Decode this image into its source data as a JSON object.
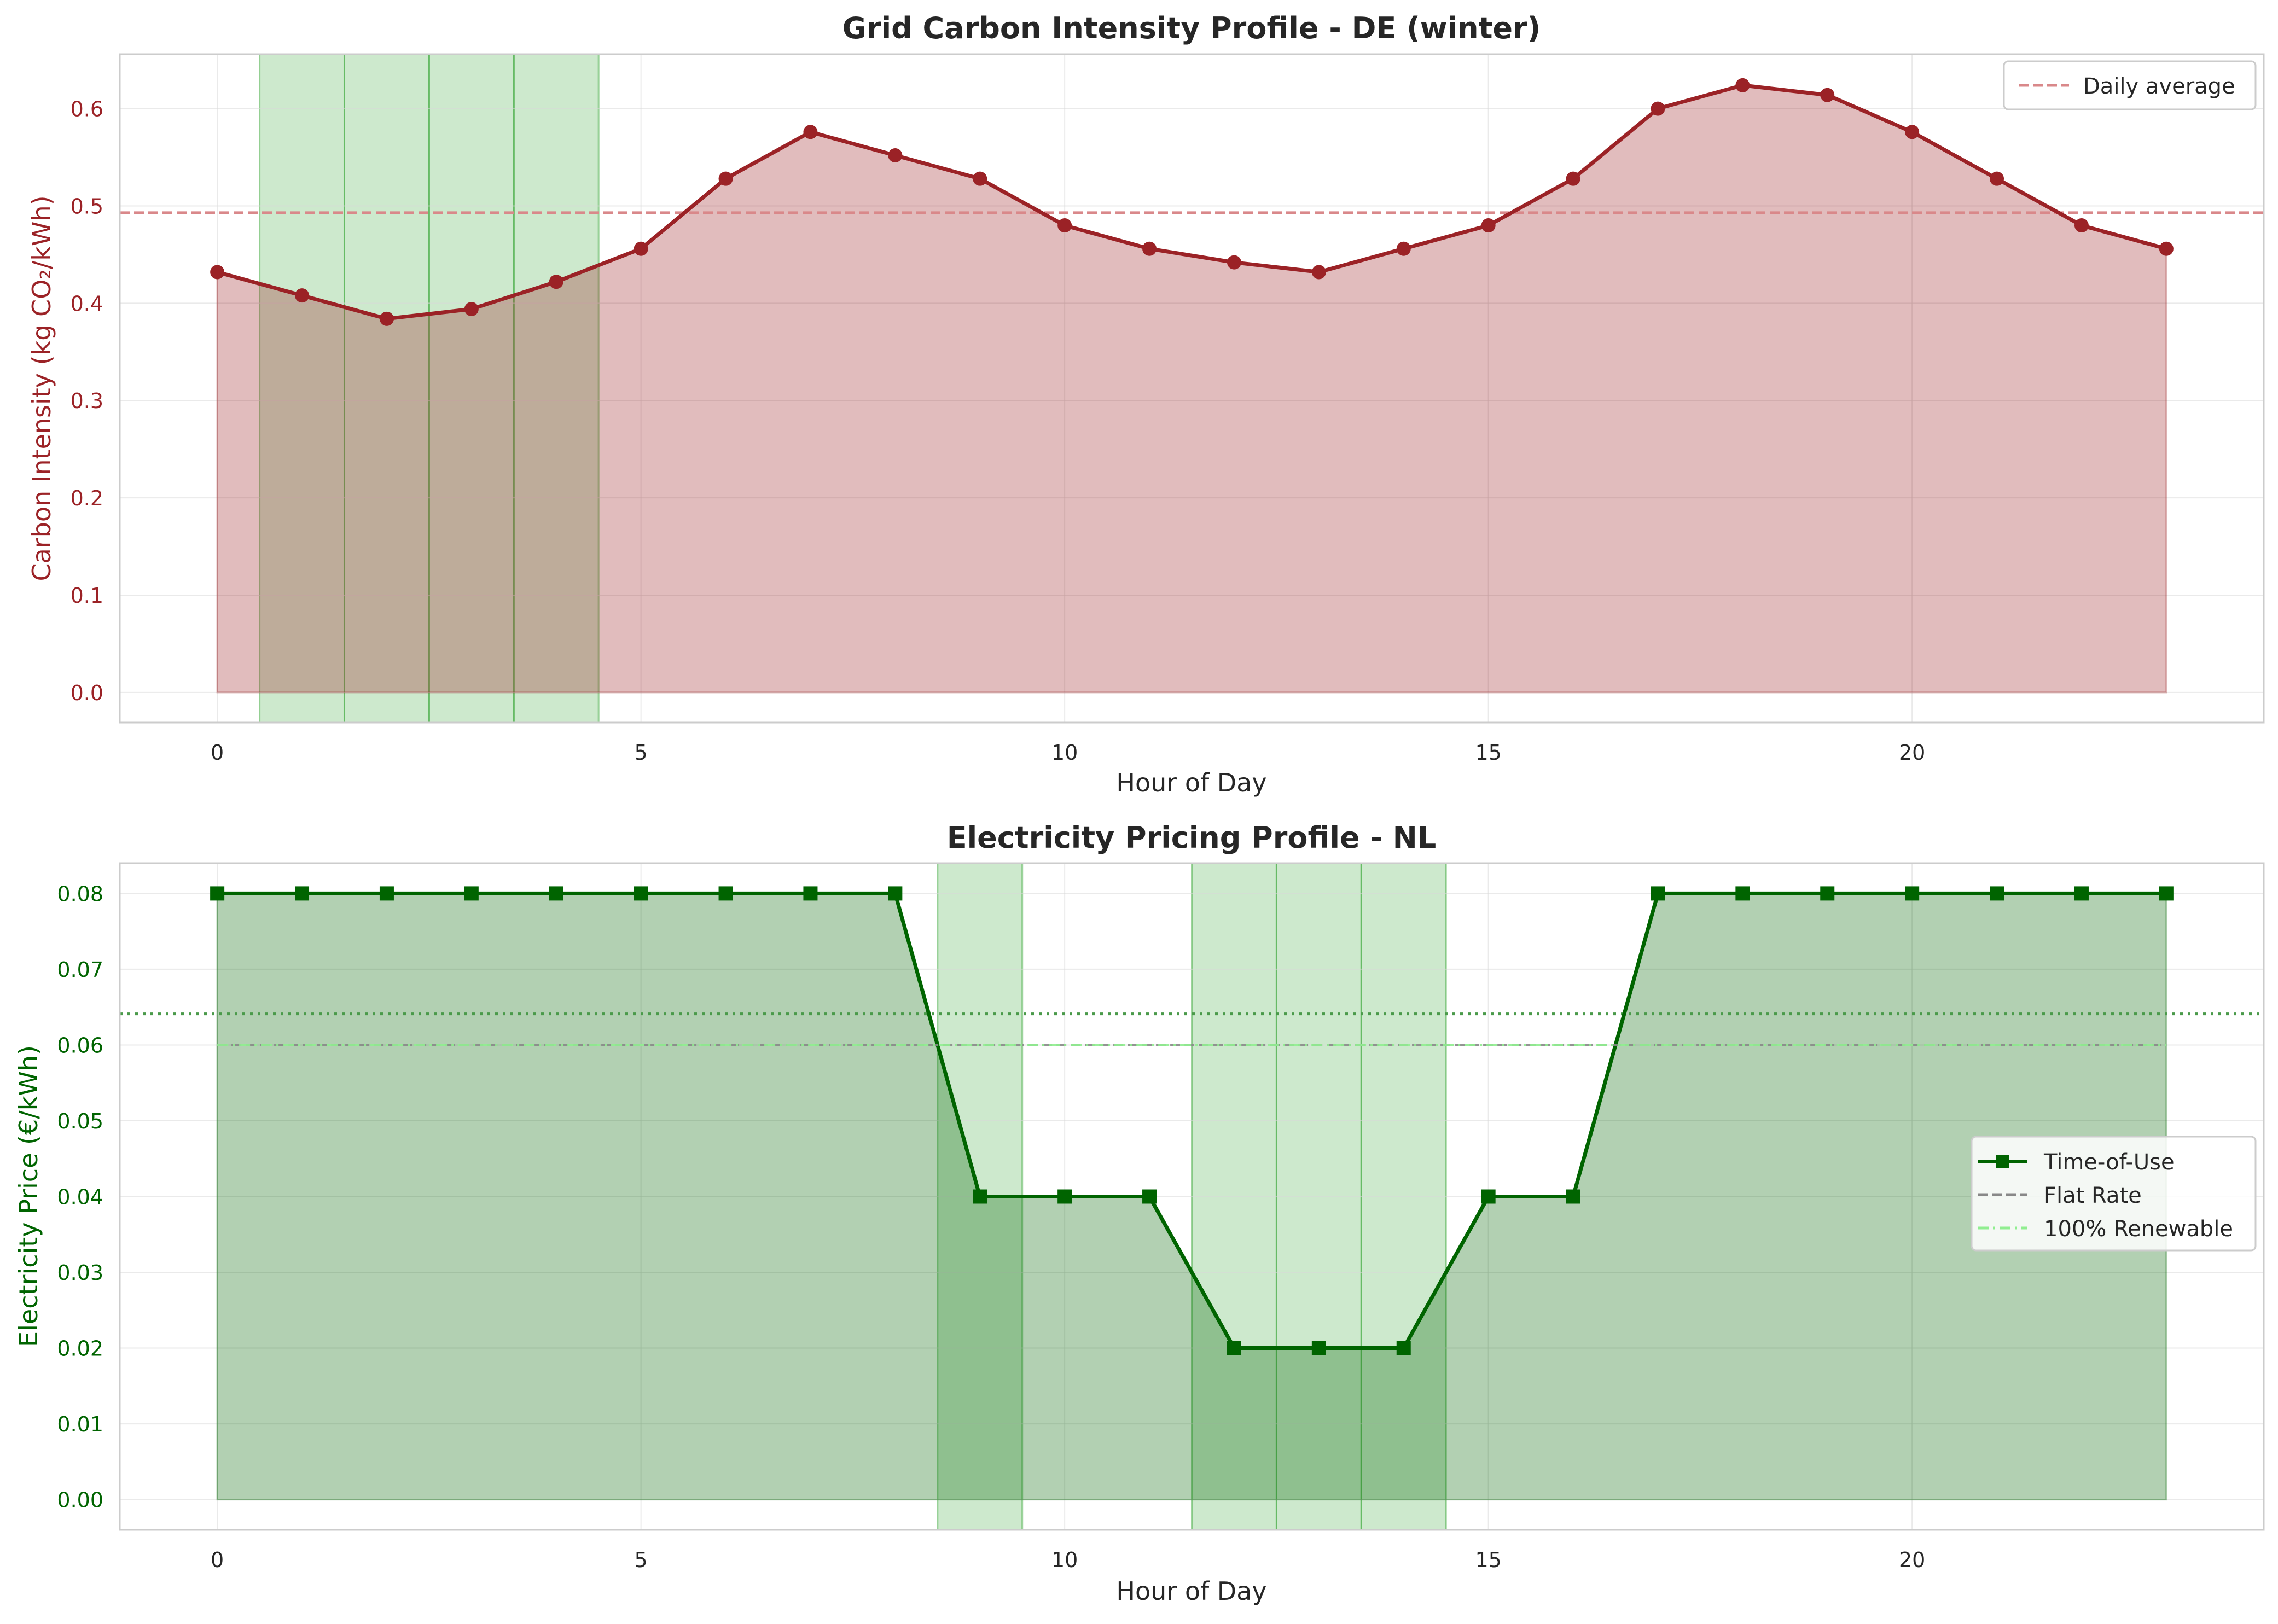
{
  "chart_data": [
    {
      "type": "line",
      "title": "Grid Carbon Intensity Profile - DE (winter)",
      "xlabel": "Hour of Day",
      "ylabel": "Carbon Intensity (kg CO₂/kWh)",
      "xlim": [
        -1.15,
        24.15
      ],
      "ylim": [
        -0.031,
        0.656
      ],
      "xticks": [
        0,
        5,
        10,
        15,
        20
      ],
      "yticks": [
        0.0,
        0.1,
        0.2,
        0.3,
        0.4,
        0.5,
        0.6
      ],
      "ytick_labels": [
        "0.0",
        "0.1",
        "0.2",
        "0.3",
        "0.4",
        "0.5",
        "0.6"
      ],
      "grid": true,
      "legend_position": "top-right",
      "x": [
        0,
        1,
        2,
        3,
        4,
        5,
        6,
        7,
        8,
        9,
        10,
        11,
        12,
        13,
        14,
        15,
        16,
        17,
        18,
        19,
        20,
        21,
        22,
        23
      ],
      "series": [
        {
          "name": "",
          "values": [
            0.432,
            0.408,
            0.384,
            0.394,
            0.422,
            0.456,
            0.528,
            0.576,
            0.552,
            0.528,
            0.48,
            0.456,
            0.442,
            0.432,
            0.456,
            0.48,
            0.528,
            0.6,
            0.624,
            0.614,
            0.576,
            0.528,
            0.48,
            0.456
          ],
          "color": "#9b2226",
          "marker": "circle",
          "fill": true
        }
      ],
      "reference_lines": [
        {
          "name": "Daily average",
          "y": 0.493,
          "style": "dashed",
          "color": "#d9888a"
        }
      ],
      "highlight_hours": [
        1,
        2,
        3,
        4
      ],
      "highlight_color": "#4daf4a"
    },
    {
      "type": "line",
      "title": "Electricity Pricing Profile - NL",
      "xlabel": "Hour of Day",
      "ylabel": "Electricity Price (€/kWh)",
      "xlim": [
        -1.15,
        24.15
      ],
      "ylim": [
        -0.004,
        0.084
      ],
      "xticks": [
        0,
        5,
        10,
        15,
        20
      ],
      "yticks": [
        0.0,
        0.01,
        0.02,
        0.03,
        0.04,
        0.05,
        0.06,
        0.07,
        0.08
      ],
      "ytick_labels": [
        "0.00",
        "0.01",
        "0.02",
        "0.03",
        "0.04",
        "0.05",
        "0.06",
        "0.07",
        "0.08"
      ],
      "grid": true,
      "legend_position": "center-right",
      "x": [
        0,
        1,
        2,
        3,
        4,
        5,
        6,
        7,
        8,
        9,
        10,
        11,
        12,
        13,
        14,
        15,
        16,
        17,
        18,
        19,
        20,
        21,
        22,
        23
      ],
      "series": [
        {
          "name": "Time-of-Use",
          "values": [
            0.08,
            0.08,
            0.08,
            0.08,
            0.08,
            0.08,
            0.08,
            0.08,
            0.08,
            0.04,
            0.04,
            0.04,
            0.02,
            0.02,
            0.02,
            0.04,
            0.04,
            0.08,
            0.08,
            0.08,
            0.08,
            0.08,
            0.08,
            0.08
          ],
          "color": "#006400",
          "marker": "square",
          "fill": true
        },
        {
          "name": "Flat Rate",
          "values": [
            0.06,
            0.06,
            0.06,
            0.06,
            0.06,
            0.06,
            0.06,
            0.06,
            0.06,
            0.06,
            0.06,
            0.06,
            0.06,
            0.06,
            0.06,
            0.06,
            0.06,
            0.06,
            0.06,
            0.06,
            0.06,
            0.06,
            0.06,
            0.06
          ],
          "color": "#888888",
          "style": "dashed"
        },
        {
          "name": "100% Renewable",
          "values": [
            0.06,
            0.06,
            0.06,
            0.06,
            0.06,
            0.06,
            0.06,
            0.06,
            0.06,
            0.06,
            0.06,
            0.06,
            0.06,
            0.06,
            0.06,
            0.06,
            0.06,
            0.06,
            0.06,
            0.06,
            0.06,
            0.06,
            0.06,
            0.06
          ],
          "color": "#90ee90",
          "style": "dashdot"
        }
      ],
      "reference_lines": [
        {
          "name": "",
          "y": 0.0641,
          "style": "dotted",
          "color": "#4a9a4a"
        }
      ],
      "highlight_hours": [
        9,
        12,
        13,
        14
      ],
      "highlight_color": "#4daf4a"
    }
  ]
}
